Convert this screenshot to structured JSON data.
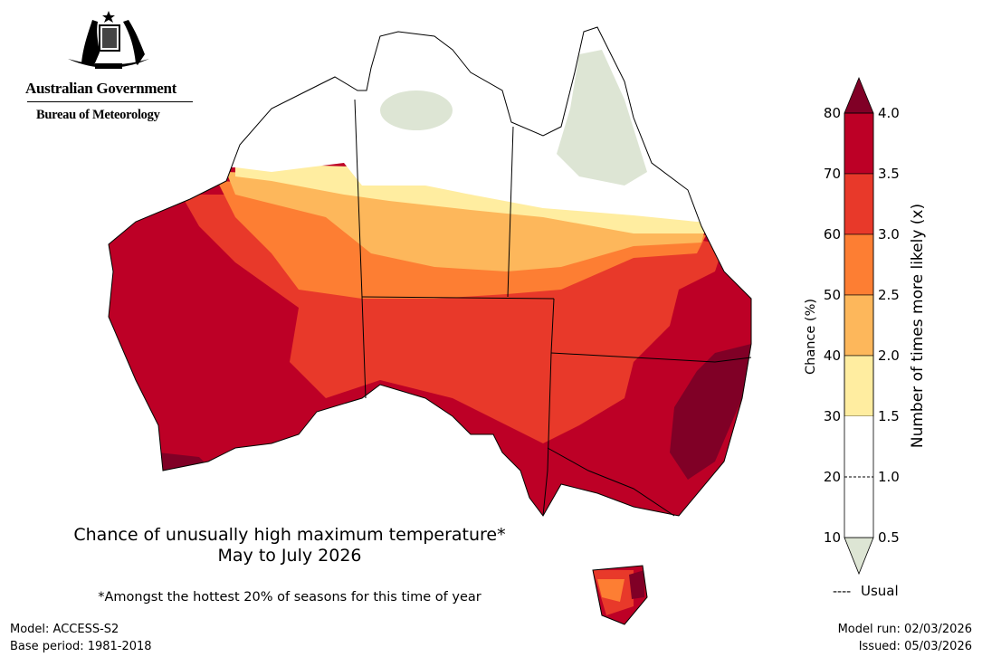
{
  "header": {
    "government": "Australian Government",
    "agency": "Bureau of Meteorology"
  },
  "map": {
    "title_line1": "Chance of unusually high maximum temperature*",
    "title_line2": "May to July 2026",
    "footnote": "*Amongst the hottest 20% of seasons for this time of year"
  },
  "footer": {
    "model": "Model: ACCESS-S2",
    "base_period": "Base period: 1981-2018",
    "model_run": "Model run: 02/03/2026",
    "issued": "Issued: 05/03/2026"
  },
  "colorbar": {
    "left_label": "Chance (%)",
    "right_label": "Number of times more likely (x)",
    "left_ticks": [
      "80",
      "70",
      "60",
      "50",
      "40",
      "30",
      "20",
      "10"
    ],
    "right_ticks": [
      "4.0",
      "3.5",
      "3.0",
      "2.5",
      "2.0",
      "1.5",
      "1.0",
      "0.5"
    ],
    "usual_label": "Usual",
    "usual_marker": "----",
    "colors": {
      "above_80": "#800026",
      "70_80": "#bd0026",
      "60_70": "#e8392a",
      "50_60": "#fd7e33",
      "40_50": "#fdb75b",
      "30_40": "#ffeda0",
      "10_30": "#ffffff",
      "below_10": "#dde5d4"
    }
  }
}
